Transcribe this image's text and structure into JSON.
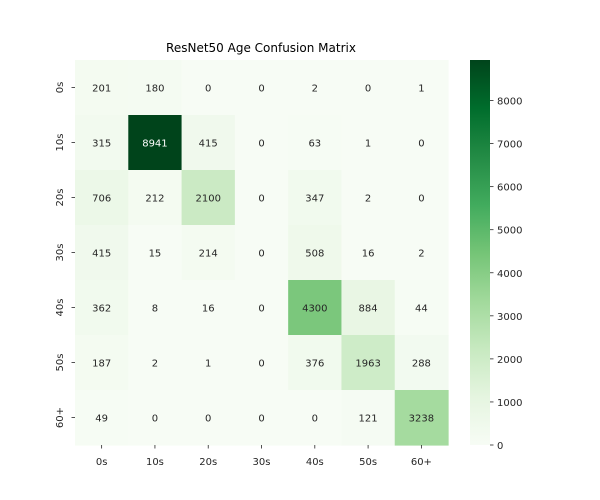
{
  "chart_data": {
    "type": "heatmap",
    "title": "ResNet50 Age Confusion Matrix",
    "xlabel": "",
    "ylabel": "",
    "x_categories": [
      "0s",
      "10s",
      "20s",
      "30s",
      "40s",
      "50s",
      "60+"
    ],
    "y_categories": [
      "0s",
      "10s",
      "20s",
      "30s",
      "40s",
      "50s",
      "60+"
    ],
    "values": [
      [
        201,
        180,
        0,
        0,
        2,
        0,
        1
      ],
      [
        315,
        8941,
        415,
        0,
        63,
        1,
        0
      ],
      [
        706,
        212,
        2100,
        0,
        347,
        2,
        0
      ],
      [
        415,
        15,
        214,
        0,
        508,
        16,
        2
      ],
      [
        362,
        8,
        16,
        0,
        4300,
        884,
        44
      ],
      [
        187,
        2,
        1,
        0,
        376,
        1963,
        288
      ],
      [
        49,
        0,
        0,
        0,
        0,
        121,
        3238
      ]
    ],
    "colormap": "Greens",
    "colormap_stops": [
      "#f7fcf5",
      "#e5f5e0",
      "#c7e9c0",
      "#a1d99b",
      "#74c476",
      "#41ab5d",
      "#238b45",
      "#006d2c",
      "#00441b"
    ],
    "vmin": 0,
    "vmax": 8941,
    "colorbar": {
      "ticks": [
        0,
        1000,
        2000,
        3000,
        4000,
        5000,
        6000,
        7000,
        8000
      ],
      "tick_labels": [
        "0",
        "1000",
        "2000",
        "3000",
        "4000",
        "5000",
        "6000",
        "7000",
        "8000"
      ]
    },
    "legend": "colorbar-right",
    "grid": false
  }
}
